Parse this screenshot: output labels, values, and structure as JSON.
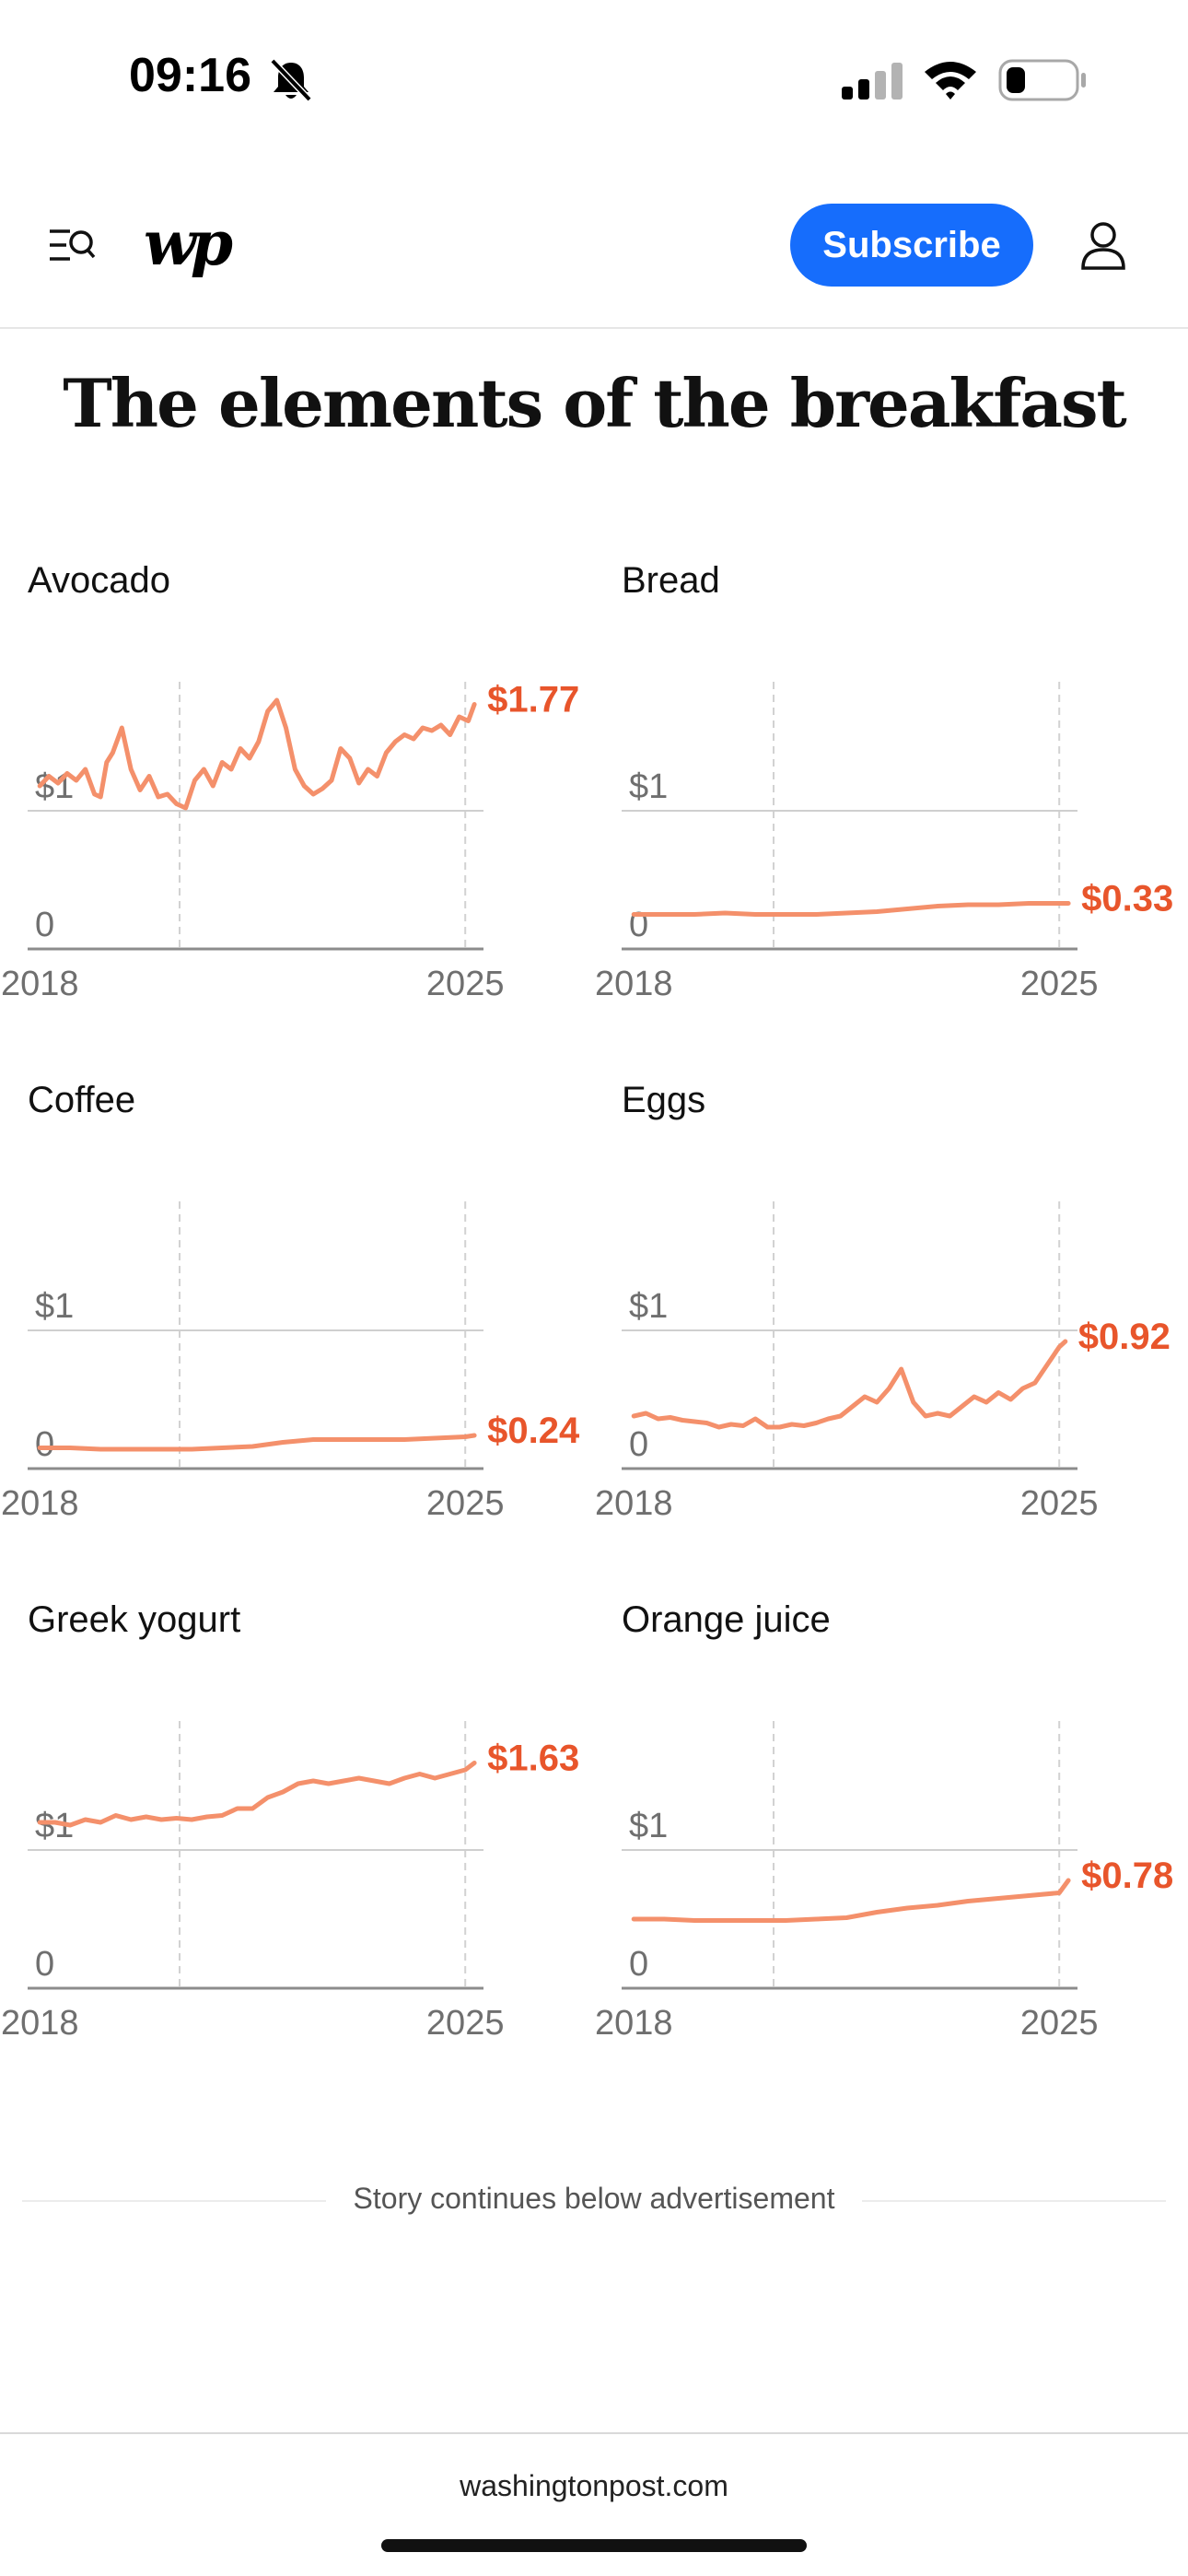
{
  "status_bar": {
    "time": "09:16",
    "icons": [
      "bell-slash-icon",
      "signal-icon",
      "wifi-icon",
      "battery-icon"
    ]
  },
  "header": {
    "logo_text": "wp",
    "subscribe_label": "Subscribe",
    "icons": [
      "menu-search-icon",
      "user-icon"
    ],
    "brand_color": "#166dfc"
  },
  "title": "The elements of the breakfast",
  "colors": {
    "line": "#f4906b",
    "end_label": "#e8552b",
    "axis": "#8c8c8c",
    "gridline": "#d2d2d2"
  },
  "chart_data": [
    {
      "type": "line",
      "title": "Avocado",
      "xlabel": "",
      "ylabel": "",
      "xlim": [
        2017.8,
        2025.3
      ],
      "ylim": [
        0,
        1.8
      ],
      "yticks": [
        {
          "value": 0,
          "label": "0"
        },
        {
          "value": 1,
          "label": "$1"
        }
      ],
      "xticks": [
        {
          "value": 2018,
          "label": "2018"
        },
        {
          "value": 2025,
          "label": "2025"
        }
      ],
      "vlines": [
        2020.3,
        2025
      ],
      "end_label": "$1.77",
      "series": [
        {
          "x": [
            2018.0,
            2018.15,
            2018.3,
            2018.45,
            2018.6,
            2018.75,
            2018.9,
            2019.0,
            2019.1,
            2019.2,
            2019.35,
            2019.5,
            2019.65,
            2019.8,
            2019.95,
            2020.1,
            2020.25,
            2020.4,
            2020.55,
            2020.7,
            2020.85,
            2021.0,
            2021.15,
            2021.3,
            2021.45,
            2021.6,
            2021.75,
            2021.9,
            2022.05,
            2022.2,
            2022.35,
            2022.5,
            2022.65,
            2022.8,
            2022.95,
            2023.1,
            2023.25,
            2023.4,
            2023.55,
            2023.7,
            2023.85,
            2024.0,
            2024.15,
            2024.3,
            2024.45,
            2024.6,
            2024.75,
            2024.9,
            2025.05,
            2025.15
          ],
          "y": [
            1.18,
            1.25,
            1.2,
            1.27,
            1.22,
            1.3,
            1.12,
            1.1,
            1.35,
            1.42,
            1.6,
            1.3,
            1.15,
            1.25,
            1.1,
            1.12,
            1.05,
            1.02,
            1.22,
            1.3,
            1.18,
            1.35,
            1.3,
            1.45,
            1.38,
            1.5,
            1.72,
            1.8,
            1.6,
            1.3,
            1.18,
            1.12,
            1.16,
            1.22,
            1.45,
            1.38,
            1.2,
            1.3,
            1.25,
            1.42,
            1.5,
            1.55,
            1.52,
            1.6,
            1.58,
            1.62,
            1.55,
            1.68,
            1.65,
            1.77
          ]
        }
      ]
    },
    {
      "type": "line",
      "title": "Bread",
      "xlabel": "",
      "ylabel": "",
      "xlim": [
        2017.8,
        2025.3
      ],
      "ylim": [
        0,
        1.8
      ],
      "yticks": [
        {
          "value": 0,
          "label": "0"
        },
        {
          "value": 1,
          "label": "$1"
        }
      ],
      "xticks": [
        {
          "value": 2018,
          "label": "2018"
        },
        {
          "value": 2025,
          "label": "2025"
        }
      ],
      "vlines": [
        2020.3,
        2025
      ],
      "end_label": "$0.33",
      "series": [
        {
          "x": [
            2018.0,
            2018.5,
            2019.0,
            2019.5,
            2020.0,
            2020.5,
            2021.0,
            2021.5,
            2022.0,
            2022.5,
            2023.0,
            2023.5,
            2024.0,
            2024.5,
            2025.0,
            2025.15
          ],
          "y": [
            0.25,
            0.25,
            0.25,
            0.26,
            0.25,
            0.25,
            0.25,
            0.26,
            0.27,
            0.29,
            0.31,
            0.32,
            0.32,
            0.33,
            0.33,
            0.33
          ]
        }
      ]
    },
    {
      "type": "line",
      "title": "Coffee",
      "xlabel": "",
      "ylabel": "",
      "xlim": [
        2017.8,
        2025.3
      ],
      "ylim": [
        0,
        1.8
      ],
      "yticks": [
        {
          "value": 0,
          "label": "0"
        },
        {
          "value": 1,
          "label": "$1"
        }
      ],
      "xticks": [
        {
          "value": 2018,
          "label": "2018"
        },
        {
          "value": 2025,
          "label": "2025"
        }
      ],
      "vlines": [
        2020.3,
        2025
      ],
      "end_label": "$0.24",
      "series": [
        {
          "x": [
            2018.0,
            2018.5,
            2019.0,
            2019.5,
            2020.0,
            2020.5,
            2021.0,
            2021.5,
            2022.0,
            2022.5,
            2023.0,
            2023.5,
            2024.0,
            2024.5,
            2025.0,
            2025.15
          ],
          "y": [
            0.15,
            0.15,
            0.14,
            0.14,
            0.14,
            0.14,
            0.15,
            0.16,
            0.19,
            0.21,
            0.21,
            0.21,
            0.21,
            0.22,
            0.23,
            0.24
          ]
        }
      ]
    },
    {
      "type": "line",
      "title": "Eggs",
      "xlabel": "",
      "ylabel": "",
      "xlim": [
        2017.8,
        2025.3
      ],
      "ylim": [
        0,
        1.8
      ],
      "yticks": [
        {
          "value": 0,
          "label": "0"
        },
        {
          "value": 1,
          "label": "$1"
        }
      ],
      "xticks": [
        {
          "value": 2018,
          "label": "2018"
        },
        {
          "value": 2025,
          "label": "2025"
        }
      ],
      "vlines": [
        2020.3,
        2025
      ],
      "end_label": "$0.92",
      "series": [
        {
          "x": [
            2018.0,
            2018.2,
            2018.4,
            2018.6,
            2018.8,
            2019.0,
            2019.2,
            2019.4,
            2019.6,
            2019.8,
            2020.0,
            2020.2,
            2020.4,
            2020.6,
            2020.8,
            2021.0,
            2021.2,
            2021.4,
            2021.6,
            2021.8,
            2022.0,
            2022.2,
            2022.4,
            2022.6,
            2022.8,
            2023.0,
            2023.2,
            2023.4,
            2023.6,
            2023.8,
            2024.0,
            2024.2,
            2024.4,
            2024.6,
            2024.8,
            2025.0,
            2025.1
          ],
          "y": [
            0.38,
            0.4,
            0.36,
            0.37,
            0.35,
            0.34,
            0.33,
            0.3,
            0.32,
            0.31,
            0.36,
            0.3,
            0.3,
            0.32,
            0.31,
            0.33,
            0.36,
            0.38,
            0.45,
            0.52,
            0.48,
            0.58,
            0.72,
            0.48,
            0.38,
            0.4,
            0.38,
            0.45,
            0.52,
            0.48,
            0.55,
            0.5,
            0.58,
            0.62,
            0.75,
            0.88,
            0.92
          ]
        }
      ]
    },
    {
      "type": "line",
      "title": "Greek yogurt",
      "xlabel": "",
      "ylabel": "",
      "xlim": [
        2017.8,
        2025.3
      ],
      "ylim": [
        0,
        1.8
      ],
      "yticks": [
        {
          "value": 0,
          "label": "0"
        },
        {
          "value": 1,
          "label": "$1"
        }
      ],
      "xticks": [
        {
          "value": 2018,
          "label": "2018"
        },
        {
          "value": 2025,
          "label": "2025"
        }
      ],
      "vlines": [
        2020.3,
        2025
      ],
      "end_label": "$1.63",
      "series": [
        {
          "x": [
            2018.0,
            2018.25,
            2018.5,
            2018.75,
            2019.0,
            2019.25,
            2019.5,
            2019.75,
            2020.0,
            2020.25,
            2020.5,
            2020.75,
            2021.0,
            2021.25,
            2021.5,
            2021.75,
            2022.0,
            2022.25,
            2022.5,
            2022.75,
            2023.0,
            2023.25,
            2023.5,
            2023.75,
            2024.0,
            2024.25,
            2024.5,
            2024.75,
            2025.0,
            2025.15
          ],
          "y": [
            1.2,
            1.2,
            1.18,
            1.22,
            1.2,
            1.25,
            1.22,
            1.24,
            1.22,
            1.23,
            1.22,
            1.24,
            1.25,
            1.3,
            1.3,
            1.38,
            1.42,
            1.48,
            1.5,
            1.48,
            1.5,
            1.52,
            1.5,
            1.48,
            1.52,
            1.55,
            1.52,
            1.55,
            1.58,
            1.63
          ]
        }
      ]
    },
    {
      "type": "line",
      "title": "Orange juice",
      "xlabel": "",
      "ylabel": "",
      "xlim": [
        2017.8,
        2025.3
      ],
      "ylim": [
        0,
        1.8
      ],
      "yticks": [
        {
          "value": 0,
          "label": "0"
        },
        {
          "value": 1,
          "label": "$1"
        }
      ],
      "xticks": [
        {
          "value": 2018,
          "label": "2018"
        },
        {
          "value": 2025,
          "label": "2025"
        }
      ],
      "vlines": [
        2020.3,
        2025
      ],
      "end_label": "$0.78",
      "series": [
        {
          "x": [
            2018.0,
            2018.5,
            2019.0,
            2019.5,
            2020.0,
            2020.5,
            2021.0,
            2021.5,
            2022.0,
            2022.5,
            2023.0,
            2023.5,
            2024.0,
            2024.5,
            2025.0,
            2025.15
          ],
          "y": [
            0.5,
            0.5,
            0.49,
            0.49,
            0.49,
            0.49,
            0.5,
            0.51,
            0.55,
            0.58,
            0.6,
            0.63,
            0.65,
            0.67,
            0.69,
            0.78
          ]
        }
      ]
    }
  ],
  "ad_divider_text": "Story continues below advertisement",
  "footer_url": "washingtonpost.com"
}
